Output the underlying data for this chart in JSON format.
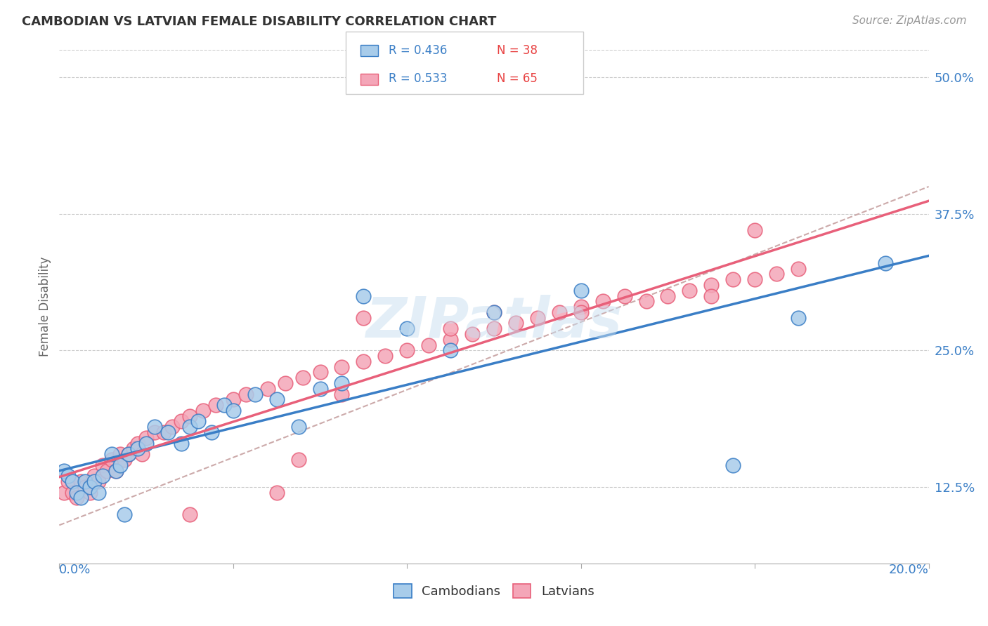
{
  "title": "CAMBODIAN VS LATVIAN FEMALE DISABILITY CORRELATION CHART",
  "source": "Source: ZipAtlas.com",
  "ylabel": "Female Disability",
  "ytick_labels": [
    "12.5%",
    "25.0%",
    "37.5%",
    "50.0%"
  ],
  "ytick_values": [
    0.125,
    0.25,
    0.375,
    0.5
  ],
  "xlim": [
    0.0,
    0.2
  ],
  "ylim": [
    0.055,
    0.525
  ],
  "color_cambodian": "#A8CCEA",
  "color_latvian": "#F4A6B8",
  "color_line_cambodian": "#3A7EC6",
  "color_line_latvian": "#E8607A",
  "color_dashed": "#CCAAAA",
  "color_grid": "#CCCCCC",
  "color_tick": "#3A7EC6",
  "cambodian_x": [
    0.001,
    0.002,
    0.003,
    0.004,
    0.005,
    0.006,
    0.007,
    0.008,
    0.009,
    0.01,
    0.012,
    0.013,
    0.014,
    0.015,
    0.016,
    0.018,
    0.02,
    0.022,
    0.025,
    0.028,
    0.03,
    0.032,
    0.035,
    0.038,
    0.04,
    0.045,
    0.05,
    0.055,
    0.06,
    0.065,
    0.07,
    0.08,
    0.09,
    0.1,
    0.12,
    0.155,
    0.17,
    0.19
  ],
  "cambodian_y": [
    0.14,
    0.135,
    0.13,
    0.12,
    0.115,
    0.13,
    0.125,
    0.13,
    0.12,
    0.135,
    0.155,
    0.14,
    0.145,
    0.1,
    0.155,
    0.16,
    0.165,
    0.18,
    0.175,
    0.165,
    0.18,
    0.185,
    0.175,
    0.2,
    0.195,
    0.21,
    0.205,
    0.18,
    0.215,
    0.22,
    0.3,
    0.27,
    0.25,
    0.285,
    0.305,
    0.145,
    0.28,
    0.33
  ],
  "latvian_x": [
    0.001,
    0.002,
    0.003,
    0.004,
    0.005,
    0.006,
    0.007,
    0.008,
    0.009,
    0.01,
    0.011,
    0.012,
    0.013,
    0.014,
    0.015,
    0.016,
    0.017,
    0.018,
    0.019,
    0.02,
    0.022,
    0.024,
    0.026,
    0.028,
    0.03,
    0.033,
    0.036,
    0.04,
    0.043,
    0.048,
    0.052,
    0.056,
    0.06,
    0.065,
    0.07,
    0.075,
    0.08,
    0.085,
    0.09,
    0.095,
    0.1,
    0.105,
    0.11,
    0.115,
    0.12,
    0.125,
    0.13,
    0.135,
    0.14,
    0.145,
    0.15,
    0.155,
    0.16,
    0.165,
    0.17,
    0.03,
    0.05,
    0.055,
    0.065,
    0.07,
    0.09,
    0.1,
    0.12,
    0.15,
    0.16
  ],
  "latvian_y": [
    0.12,
    0.13,
    0.12,
    0.115,
    0.13,
    0.125,
    0.12,
    0.135,
    0.13,
    0.145,
    0.14,
    0.15,
    0.14,
    0.155,
    0.15,
    0.155,
    0.16,
    0.165,
    0.155,
    0.17,
    0.175,
    0.175,
    0.18,
    0.185,
    0.19,
    0.195,
    0.2,
    0.205,
    0.21,
    0.215,
    0.22,
    0.225,
    0.23,
    0.235,
    0.24,
    0.245,
    0.25,
    0.255,
    0.26,
    0.265,
    0.27,
    0.275,
    0.28,
    0.285,
    0.29,
    0.295,
    0.3,
    0.295,
    0.3,
    0.305,
    0.31,
    0.315,
    0.315,
    0.32,
    0.325,
    0.1,
    0.12,
    0.15,
    0.21,
    0.28,
    0.27,
    0.285,
    0.285,
    0.3,
    0.36
  ],
  "watermark": "ZIPatlas",
  "background_color": "#FFFFFF",
  "r_cam": "0.436",
  "n_cam": "38",
  "r_lat": "0.533",
  "n_lat": "65"
}
